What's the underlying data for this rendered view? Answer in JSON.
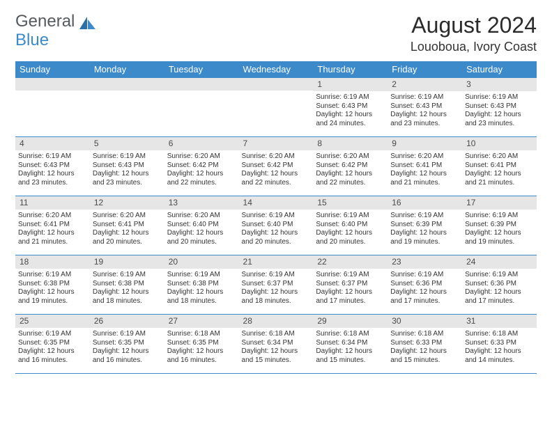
{
  "logo": {
    "general": "General",
    "blue": "Blue"
  },
  "header": {
    "month_title": "August 2024",
    "location": "Louoboua, Ivory Coast"
  },
  "colors": {
    "header_blue": "#3c8ac9",
    "daynum_bg": "#e6e6e6",
    "border": "#3c8ac9",
    "text": "#333333",
    "logo_gray": "#555a5e"
  },
  "dow": [
    "Sunday",
    "Monday",
    "Tuesday",
    "Wednesday",
    "Thursday",
    "Friday",
    "Saturday"
  ],
  "weeks": [
    [
      {
        "n": "",
        "sr": "",
        "ss": "",
        "dl": ""
      },
      {
        "n": "",
        "sr": "",
        "ss": "",
        "dl": ""
      },
      {
        "n": "",
        "sr": "",
        "ss": "",
        "dl": ""
      },
      {
        "n": "",
        "sr": "",
        "ss": "",
        "dl": ""
      },
      {
        "n": "1",
        "sr": "Sunrise: 6:19 AM",
        "ss": "Sunset: 6:43 PM",
        "dl": "Daylight: 12 hours and 24 minutes."
      },
      {
        "n": "2",
        "sr": "Sunrise: 6:19 AM",
        "ss": "Sunset: 6:43 PM",
        "dl": "Daylight: 12 hours and 23 minutes."
      },
      {
        "n": "3",
        "sr": "Sunrise: 6:19 AM",
        "ss": "Sunset: 6:43 PM",
        "dl": "Daylight: 12 hours and 23 minutes."
      }
    ],
    [
      {
        "n": "4",
        "sr": "Sunrise: 6:19 AM",
        "ss": "Sunset: 6:43 PM",
        "dl": "Daylight: 12 hours and 23 minutes."
      },
      {
        "n": "5",
        "sr": "Sunrise: 6:19 AM",
        "ss": "Sunset: 6:43 PM",
        "dl": "Daylight: 12 hours and 23 minutes."
      },
      {
        "n": "6",
        "sr": "Sunrise: 6:20 AM",
        "ss": "Sunset: 6:42 PM",
        "dl": "Daylight: 12 hours and 22 minutes."
      },
      {
        "n": "7",
        "sr": "Sunrise: 6:20 AM",
        "ss": "Sunset: 6:42 PM",
        "dl": "Daylight: 12 hours and 22 minutes."
      },
      {
        "n": "8",
        "sr": "Sunrise: 6:20 AM",
        "ss": "Sunset: 6:42 PM",
        "dl": "Daylight: 12 hours and 22 minutes."
      },
      {
        "n": "9",
        "sr": "Sunrise: 6:20 AM",
        "ss": "Sunset: 6:41 PM",
        "dl": "Daylight: 12 hours and 21 minutes."
      },
      {
        "n": "10",
        "sr": "Sunrise: 6:20 AM",
        "ss": "Sunset: 6:41 PM",
        "dl": "Daylight: 12 hours and 21 minutes."
      }
    ],
    [
      {
        "n": "11",
        "sr": "Sunrise: 6:20 AM",
        "ss": "Sunset: 6:41 PM",
        "dl": "Daylight: 12 hours and 21 minutes."
      },
      {
        "n": "12",
        "sr": "Sunrise: 6:20 AM",
        "ss": "Sunset: 6:41 PM",
        "dl": "Daylight: 12 hours and 20 minutes."
      },
      {
        "n": "13",
        "sr": "Sunrise: 6:20 AM",
        "ss": "Sunset: 6:40 PM",
        "dl": "Daylight: 12 hours and 20 minutes."
      },
      {
        "n": "14",
        "sr": "Sunrise: 6:19 AM",
        "ss": "Sunset: 6:40 PM",
        "dl": "Daylight: 12 hours and 20 minutes."
      },
      {
        "n": "15",
        "sr": "Sunrise: 6:19 AM",
        "ss": "Sunset: 6:40 PM",
        "dl": "Daylight: 12 hours and 20 minutes."
      },
      {
        "n": "16",
        "sr": "Sunrise: 6:19 AM",
        "ss": "Sunset: 6:39 PM",
        "dl": "Daylight: 12 hours and 19 minutes."
      },
      {
        "n": "17",
        "sr": "Sunrise: 6:19 AM",
        "ss": "Sunset: 6:39 PM",
        "dl": "Daylight: 12 hours and 19 minutes."
      }
    ],
    [
      {
        "n": "18",
        "sr": "Sunrise: 6:19 AM",
        "ss": "Sunset: 6:38 PM",
        "dl": "Daylight: 12 hours and 19 minutes."
      },
      {
        "n": "19",
        "sr": "Sunrise: 6:19 AM",
        "ss": "Sunset: 6:38 PM",
        "dl": "Daylight: 12 hours and 18 minutes."
      },
      {
        "n": "20",
        "sr": "Sunrise: 6:19 AM",
        "ss": "Sunset: 6:38 PM",
        "dl": "Daylight: 12 hours and 18 minutes."
      },
      {
        "n": "21",
        "sr": "Sunrise: 6:19 AM",
        "ss": "Sunset: 6:37 PM",
        "dl": "Daylight: 12 hours and 18 minutes."
      },
      {
        "n": "22",
        "sr": "Sunrise: 6:19 AM",
        "ss": "Sunset: 6:37 PM",
        "dl": "Daylight: 12 hours and 17 minutes."
      },
      {
        "n": "23",
        "sr": "Sunrise: 6:19 AM",
        "ss": "Sunset: 6:36 PM",
        "dl": "Daylight: 12 hours and 17 minutes."
      },
      {
        "n": "24",
        "sr": "Sunrise: 6:19 AM",
        "ss": "Sunset: 6:36 PM",
        "dl": "Daylight: 12 hours and 17 minutes."
      }
    ],
    [
      {
        "n": "25",
        "sr": "Sunrise: 6:19 AM",
        "ss": "Sunset: 6:35 PM",
        "dl": "Daylight: 12 hours and 16 minutes."
      },
      {
        "n": "26",
        "sr": "Sunrise: 6:19 AM",
        "ss": "Sunset: 6:35 PM",
        "dl": "Daylight: 12 hours and 16 minutes."
      },
      {
        "n": "27",
        "sr": "Sunrise: 6:18 AM",
        "ss": "Sunset: 6:35 PM",
        "dl": "Daylight: 12 hours and 16 minutes."
      },
      {
        "n": "28",
        "sr": "Sunrise: 6:18 AM",
        "ss": "Sunset: 6:34 PM",
        "dl": "Daylight: 12 hours and 15 minutes."
      },
      {
        "n": "29",
        "sr": "Sunrise: 6:18 AM",
        "ss": "Sunset: 6:34 PM",
        "dl": "Daylight: 12 hours and 15 minutes."
      },
      {
        "n": "30",
        "sr": "Sunrise: 6:18 AM",
        "ss": "Sunset: 6:33 PM",
        "dl": "Daylight: 12 hours and 15 minutes."
      },
      {
        "n": "31",
        "sr": "Sunrise: 6:18 AM",
        "ss": "Sunset: 6:33 PM",
        "dl": "Daylight: 12 hours and 14 minutes."
      }
    ]
  ]
}
